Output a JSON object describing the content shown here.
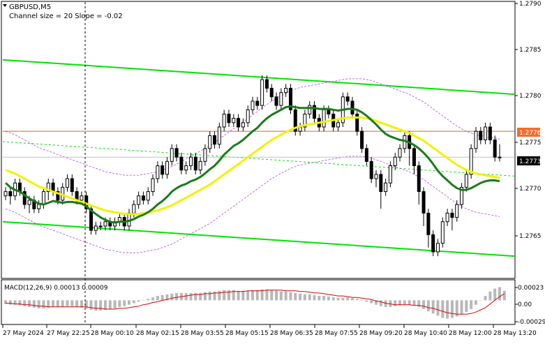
{
  "header": {
    "symbol": "GBPUSD,M5",
    "indicator": "Channel size = 20 Slope = -0.02"
  },
  "price_labels": {
    "current": "1.2773",
    "level": "1.2776"
  },
  "price_axis": [
    "1.2790",
    "1.2785",
    "1.2780",
    "1.2775",
    "1.2770",
    "1.2765"
  ],
  "macd": {
    "label": "MACD(12,26,9) 0.00013 0.00009",
    "axis": [
      "0.00023",
      "0.00",
      "-0.00029"
    ]
  },
  "time_axis": [
    "27 May 2024",
    "27 May 22:25",
    "28 May 00:10",
    "28 May 02:15",
    "28 May 03:55",
    "28 May 05:15",
    "28 May 06:35",
    "28 May 07:55",
    "28 May 09:20",
    "28 May 10:40",
    "28 May 12:00",
    "28 May 13:20"
  ],
  "colors": {
    "bull": "#000000",
    "bear": "#000000",
    "channel": "#00e400",
    "ma_fast": "#1a7a1a",
    "ma_slow": "#f2f200",
    "envelope": "#b844d8",
    "level_line": "#d2691e",
    "level_label_bg": "#f26d2c",
    "current_label_bg": "#000000",
    "macd_hist": "#b8b8b8",
    "macd_signal": "#dd0000"
  },
  "chart_data": {
    "type": "candlestick",
    "symbol": "GBPUSD",
    "timeframe": "M5",
    "ylim": [
      1.2759,
      1.2791
    ],
    "current_price": 1.2773,
    "level": 1.2776,
    "channel_upper": [
      1.27843,
      1.27803
    ],
    "channel_lower": [
      1.27655,
      1.27615
    ],
    "channel_mid": [
      1.27748,
      1.27708
    ],
    "macd_ylim": [
      -0.00032,
      0.00027
    ],
    "candles": [
      [
        1.27685,
        1.2769,
        1.27695,
        1.2768
      ],
      [
        1.2769,
        1.27685,
        1.27695,
        1.27675
      ],
      [
        1.27685,
        1.277,
        1.27705,
        1.2768
      ],
      [
        1.277,
        1.2769,
        1.27705,
        1.27685
      ],
      [
        1.2769,
        1.27675,
        1.27695,
        1.2767
      ],
      [
        1.27675,
        1.2768,
        1.27685,
        1.27665
      ],
      [
        1.2768,
        1.2767,
        1.27685,
        1.27665
      ],
      [
        1.2767,
        1.27675,
        1.2768,
        1.27665
      ],
      [
        1.27675,
        1.2769,
        1.27695,
        1.2767
      ],
      [
        1.2769,
        1.277,
        1.27705,
        1.2768
      ],
      [
        1.277,
        1.2769,
        1.27705,
        1.27685
      ],
      [
        1.2769,
        1.2768,
        1.27695,
        1.27675
      ],
      [
        1.2768,
        1.27695,
        1.277,
        1.27675
      ],
      [
        1.27695,
        1.27705,
        1.2771,
        1.2769
      ],
      [
        1.27705,
        1.2769,
        1.2771,
        1.27685
      ],
      [
        1.2769,
        1.2768,
        1.27695,
        1.27675
      ],
      [
        1.2768,
        1.27685,
        1.2769,
        1.27675
      ],
      [
        1.27685,
        1.2767,
        1.2769,
        1.27665
      ],
      [
        1.2767,
        1.27645,
        1.27675,
        1.2764
      ],
      [
        1.27645,
        1.2765,
        1.27655,
        1.2764
      ],
      [
        1.2765,
        1.2765,
        1.27655,
        1.27645
      ],
      [
        1.2765,
        1.27655,
        1.2766,
        1.27645
      ],
      [
        1.27655,
        1.2765,
        1.2766,
        1.27645
      ],
      [
        1.2765,
        1.27655,
        1.2766,
        1.27645
      ],
      [
        1.27655,
        1.2766,
        1.27665,
        1.2765
      ],
      [
        1.2766,
        1.2765,
        1.27665,
        1.27645
      ],
      [
        1.2765,
        1.27665,
        1.2767,
        1.27645
      ],
      [
        1.27665,
        1.27675,
        1.2768,
        1.2766
      ],
      [
        1.27675,
        1.27685,
        1.2769,
        1.2767
      ],
      [
        1.27685,
        1.2768,
        1.2769,
        1.27675
      ],
      [
        1.2768,
        1.2769,
        1.27695,
        1.27675
      ],
      [
        1.2769,
        1.27705,
        1.2771,
        1.27685
      ],
      [
        1.27705,
        1.2772,
        1.27725,
        1.277
      ],
      [
        1.2772,
        1.2771,
        1.27725,
        1.27705
      ],
      [
        1.2771,
        1.27725,
        1.2773,
        1.27705
      ],
      [
        1.27725,
        1.2774,
        1.27745,
        1.2772
      ],
      [
        1.2774,
        1.2773,
        1.27745,
        1.27725
      ],
      [
        1.2773,
        1.27715,
        1.27735,
        1.2771
      ],
      [
        1.27715,
        1.2772,
        1.27725,
        1.2771
      ],
      [
        1.2772,
        1.2773,
        1.27735,
        1.27715
      ],
      [
        1.2773,
        1.27715,
        1.27735,
        1.2771
      ],
      [
        1.27715,
        1.27725,
        1.2773,
        1.2771
      ],
      [
        1.27725,
        1.2774,
        1.27745,
        1.2772
      ],
      [
        1.2774,
        1.27755,
        1.2776,
        1.27735
      ],
      [
        1.27755,
        1.27745,
        1.2776,
        1.2774
      ],
      [
        1.27745,
        1.27765,
        1.2777,
        1.2774
      ],
      [
        1.27765,
        1.2778,
        1.27785,
        1.2776
      ],
      [
        1.2778,
        1.2777,
        1.27785,
        1.27765
      ],
      [
        1.2777,
        1.27775,
        1.2778,
        1.27765
      ],
      [
        1.27775,
        1.27765,
        1.2778,
        1.2776
      ],
      [
        1.27765,
        1.2777,
        1.27775,
        1.2776
      ],
      [
        1.2777,
        1.27785,
        1.2779,
        1.27765
      ],
      [
        1.27785,
        1.27795,
        1.278,
        1.2778
      ],
      [
        1.27795,
        1.2779,
        1.278,
        1.27785
      ],
      [
        1.2779,
        1.2782,
        1.27825,
        1.27785
      ],
      [
        1.2782,
        1.2781,
        1.27825,
        1.27805
      ],
      [
        1.2781,
        1.278,
        1.27815,
        1.27795
      ],
      [
        1.278,
        1.2779,
        1.27805,
        1.27785
      ],
      [
        1.2779,
        1.27805,
        1.2781,
        1.27785
      ],
      [
        1.27805,
        1.2781,
        1.27815,
        1.278
      ],
      [
        1.2781,
        1.27785,
        1.27815,
        1.2778
      ],
      [
        1.27785,
        1.2776,
        1.2779,
        1.27755
      ],
      [
        1.2776,
        1.27765,
        1.2777,
        1.27755
      ],
      [
        1.27765,
        1.2778,
        1.27785,
        1.2776
      ],
      [
        1.2778,
        1.2779,
        1.27795,
        1.27775
      ],
      [
        1.2779,
        1.27775,
        1.27795,
        1.2777
      ],
      [
        1.27775,
        1.27765,
        1.2778,
        1.2776
      ],
      [
        1.27765,
        1.27785,
        1.2779,
        1.2776
      ],
      [
        1.27785,
        1.2778,
        1.2779,
        1.27775
      ],
      [
        1.2778,
        1.27765,
        1.27785,
        1.2776
      ],
      [
        1.27765,
        1.2777,
        1.27775,
        1.2776
      ],
      [
        1.2777,
        1.278,
        1.27805,
        1.27765
      ],
      [
        1.278,
        1.27795,
        1.27805,
        1.2779
      ],
      [
        1.27795,
        1.2778,
        1.278,
        1.27775
      ],
      [
        1.2778,
        1.2776,
        1.27785,
        1.27755
      ],
      [
        1.2776,
        1.2774,
        1.27765,
        1.27735
      ],
      [
        1.2774,
        1.27725,
        1.27745,
        1.2772
      ],
      [
        1.27725,
        1.27705,
        1.2773,
        1.277
      ],
      [
        1.27705,
        1.2771,
        1.27715,
        1.27695
      ],
      [
        1.2771,
        1.2769,
        1.27715,
        1.2767
      ],
      [
        1.2769,
        1.277,
        1.27705,
        1.27685
      ],
      [
        1.277,
        1.2772,
        1.27725,
        1.27695
      ],
      [
        1.2772,
        1.2773,
        1.27735,
        1.27715
      ],
      [
        1.2773,
        1.2774,
        1.27745,
        1.27725
      ],
      [
        1.2774,
        1.27755,
        1.2776,
        1.27735
      ],
      [
        1.27755,
        1.2774,
        1.2776,
        1.2772
      ],
      [
        1.2774,
        1.2772,
        1.27745,
        1.2771
      ],
      [
        1.2772,
        1.2769,
        1.27725,
        1.27675
      ],
      [
        1.2769,
        1.27665,
        1.27695,
        1.2765
      ],
      [
        1.27665,
        1.2764,
        1.2767,
        1.27625
      ],
      [
        1.2764,
        1.2762,
        1.27645,
        1.27615
      ],
      [
        1.2762,
        1.2763,
        1.27635,
        1.27615
      ],
      [
        1.2763,
        1.27655,
        1.2766,
        1.27625
      ],
      [
        1.27655,
        1.27665,
        1.2767,
        1.2765
      ],
      [
        1.27665,
        1.2766,
        1.2767,
        1.27645
      ],
      [
        1.2766,
        1.27675,
        1.2768,
        1.27655
      ],
      [
        1.27675,
        1.27695,
        1.277,
        1.2767
      ],
      [
        1.27695,
        1.2771,
        1.27715,
        1.2769
      ],
      [
        1.2771,
        1.2774,
        1.27745,
        1.27705
      ],
      [
        1.2774,
        1.2776,
        1.27765,
        1.27735
      ],
      [
        1.2776,
        1.2775,
        1.27765,
        1.27745
      ],
      [
        1.2775,
        1.27765,
        1.2777,
        1.27745
      ],
      [
        1.27765,
        1.2775,
        1.2777,
        1.27745
      ],
      [
        1.2775,
        1.2773,
        1.27755,
        1.27725
      ],
      [
        1.2773,
        1.2773,
        1.27745,
        1.27725
      ]
    ],
    "ma_fast": [
      1.277,
      1.27695,
      1.27692,
      1.2769,
      1.27686,
      1.27682,
      1.27679,
      1.27676,
      1.27675,
      1.27677,
      1.27679,
      1.27678,
      1.27677,
      1.27678,
      1.27678,
      1.27677,
      1.27676,
      1.27673,
      1.27668,
      1.27664,
      1.2766,
      1.27657,
      1.27655,
      1.27654,
      1.27655,
      1.27655,
      1.27656,
      1.27658,
      1.27661,
      1.27663,
      1.27666,
      1.2767,
      1.27675,
      1.27679,
      1.27684,
      1.2769,
      1.27694,
      1.27697,
      1.27699,
      1.27702,
      1.27704,
      1.27707,
      1.27711,
      1.27716,
      1.2772,
      1.27726,
      1.27733,
      1.27738,
      1.27743,
      1.27746,
      1.2775,
      1.27755,
      1.2776,
      1.27764,
      1.2777,
      1.27775,
      1.27779,
      1.27782,
      1.27785,
      1.27788,
      1.27789,
      1.27788,
      1.27787,
      1.27787,
      1.27787,
      1.27787,
      1.27786,
      1.27786,
      1.27786,
      1.27785,
      1.27784,
      1.27785,
      1.27786,
      1.27786,
      1.27785,
      1.27782,
      1.27778,
      1.27773,
      1.27768,
      1.27762,
      1.27757,
      1.27754,
      1.27752,
      1.2775,
      1.27749,
      1.27747,
      1.27744,
      1.2774,
      1.27735,
      1.27729,
      1.27722,
      1.27714,
      1.27708,
      1.27703,
      1.27698,
      1.27694,
      1.27692,
      1.27692,
      1.27694,
      1.27697,
      1.277,
      1.27702,
      1.27703,
      1.27703,
      1.27702
    ],
    "ma_slow": [
      1.27715,
      1.27713,
      1.27711,
      1.27708,
      1.27705,
      1.27702,
      1.27699,
      1.27696,
      1.27694,
      1.27692,
      1.2769,
      1.27688,
      1.27686,
      1.27684,
      1.27682,
      1.2768,
      1.27678,
      1.27676,
      1.27674,
      1.27672,
      1.2767,
      1.27668,
      1.27667,
      1.27666,
      1.27665,
      1.27664,
      1.27664,
      1.27664,
      1.27664,
      1.27665,
      1.27666,
      1.27667,
      1.27668,
      1.2767,
      1.27672,
      1.27674,
      1.27677,
      1.2768,
      1.27683,
      1.27686,
      1.27689,
      1.27692,
      1.27695,
      1.27698,
      1.27702,
      1.27706,
      1.2771,
      1.27714,
      1.27718,
      1.27722,
      1.27726,
      1.2773,
      1.27734,
      1.27738,
      1.27742,
      1.27746,
      1.2775,
      1.27753,
      1.27756,
      1.27759,
      1.27762,
      1.27764,
      1.27766,
      1.27767,
      1.27768,
      1.27769,
      1.2777,
      1.27771,
      1.27772,
      1.27773,
      1.27774,
      1.27775,
      1.27776,
      1.27776,
      1.27776,
      1.27776,
      1.27775,
      1.27774,
      1.27772,
      1.2777,
      1.27768,
      1.27766,
      1.27764,
      1.27762,
      1.2776,
      1.27758,
      1.27755,
      1.27752,
      1.27749,
      1.27745,
      1.27741,
      1.27737,
      1.27733,
      1.27729,
      1.27725,
      1.27721,
      1.27718,
      1.27715,
      1.27713,
      1.27711,
      1.2771,
      1.27709,
      1.27708,
      1.27707,
      1.27706
    ],
    "macd_hist": [
      -5e-05,
      -6e-05,
      -6e-05,
      -7e-05,
      -8e-05,
      -9e-05,
      -0.0001,
      -0.00011,
      -0.00011,
      -0.0001,
      -9e-05,
      -9e-05,
      -9e-05,
      -8e-05,
      -8e-05,
      -9e-05,
      -0.0001,
      -0.00011,
      -0.00013,
      -0.00014,
      -0.00014,
      -0.00013,
      -0.00012,
      -0.00011,
      -9e-05,
      -8e-05,
      -6e-05,
      -4e-05,
      -2e-05,
      0.0,
      2e-05,
      4e-05,
      6e-05,
      7e-05,
      8e-05,
      9e-05,
      0.0001,
      0.0001,
      0.0001,
      0.0001,
      0.0001,
      0.0001,
      0.00011,
      0.00012,
      0.00012,
      0.00013,
      0.00014,
      0.00014,
      0.00014,
      0.00013,
      0.00013,
      0.00013,
      0.00014,
      0.00014,
      0.00015,
      0.00015,
      0.00014,
      0.00013,
      0.00012,
      0.00012,
      0.00011,
      0.0001,
      9e-05,
      8e-05,
      8e-05,
      7e-05,
      6e-05,
      6e-05,
      5e-05,
      4e-05,
      3e-05,
      3e-05,
      4e-05,
      3e-05,
      2e-05,
      0.0,
      -2e-05,
      -4e-05,
      -6e-05,
      -8e-05,
      -9e-05,
      -9e-05,
      -8e-05,
      -7e-05,
      -6e-05,
      -6e-05,
      -7e-05,
      -9e-05,
      -0.00012,
      -0.00015,
      -0.00018,
      -0.00021,
      -0.00024,
      -0.00025,
      -0.00024,
      -0.00022,
      -0.00019,
      -0.00016,
      -0.00012,
      -6e-05,
      0.0,
      6e-05,
      0.00012,
      0.00016,
      0.00018,
      0.00013
    ],
    "macd_signal": [
      -4e-05,
      -4e-05,
      -5e-05,
      -5e-05,
      -6e-05,
      -6e-05,
      -7e-05,
      -8e-05,
      -8e-05,
      -9e-05,
      -9e-05,
      -9e-05,
      -9e-05,
      -9e-05,
      -9e-05,
      -9e-05,
      -9e-05,
      -9e-05,
      -0.0001,
      -0.00011,
      -0.00011,
      -0.00012,
      -0.00012,
      -0.00012,
      -0.00011,
      -0.00011,
      -0.0001,
      -9e-05,
      -8e-05,
      -6e-05,
      -5e-05,
      -3e-05,
      -2e-05,
      0.0,
      1e-05,
      3e-05,
      4e-05,
      5e-05,
      6e-05,
      7e-05,
      8e-05,
      8e-05,
      9e-05,
      9e-05,
      0.0001,
      0.0001,
      0.00011,
      0.00011,
      0.00012,
      0.00012,
      0.00012,
      0.00013,
      0.00013,
      0.00013,
      0.00013,
      0.00014,
      0.00014,
      0.00014,
      0.00014,
      0.00013,
      0.00013,
      0.00013,
      0.00012,
      0.00012,
      0.00011,
      0.0001,
      0.0001,
      9e-05,
      8e-05,
      7e-05,
      6e-05,
      6e-05,
      5e-05,
      4e-05,
      4e-05,
      3e-05,
      2e-05,
      1e-05,
      -1e-05,
      -2e-05,
      -4e-05,
      -5e-05,
      -6e-05,
      -6e-05,
      -6e-05,
      -6e-05,
      -7e-05,
      -7e-05,
      -8e-05,
      -0.0001,
      -0.00011,
      -0.00013,
      -0.00015,
      -0.00017,
      -0.00018,
      -0.00019,
      -0.00019,
      -0.00019,
      -0.00018,
      -0.00016,
      -0.00013,
      -0.0001,
      -5e-05,
      0.0,
      5e-05,
      9e-05
    ]
  }
}
